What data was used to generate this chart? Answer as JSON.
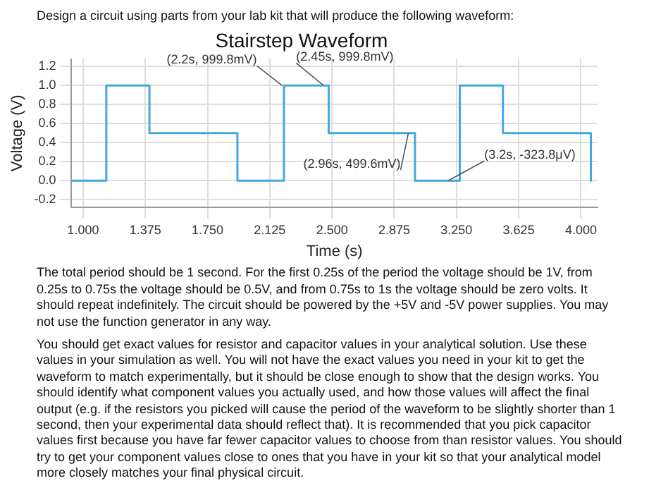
{
  "chart_data": {
    "type": "line",
    "title": "Stairstep Waveform",
    "xlabel": "Time (s)",
    "ylabel": "Voltage (V)",
    "xlim": [
      0.93,
      4.1
    ],
    "ylim": [
      -0.28,
      1.28
    ],
    "xticks": [
      {
        "value": 1,
        "label": "1.000"
      },
      {
        "value": 1.375,
        "label": "1.375"
      },
      {
        "value": 1.75,
        "label": "1.750"
      },
      {
        "value": 2.125,
        "label": "2.125"
      },
      {
        "value": 2.5,
        "label": "2.500"
      },
      {
        "value": 2.875,
        "label": "2.875"
      },
      {
        "value": 3.25,
        "label": "3.250"
      },
      {
        "value": 3.625,
        "label": "3.625"
      },
      {
        "value": 4,
        "label": "4.000"
      }
    ],
    "yticks": [
      {
        "value": -0.2,
        "label": "-0.2"
      },
      {
        "value": 0,
        "label": "0.0"
      },
      {
        "value": 0.2,
        "label": "0.2"
      },
      {
        "value": 0.4,
        "label": "0.4"
      },
      {
        "value": 0.6,
        "label": "0.6"
      },
      {
        "value": 0.8,
        "label": "0.8"
      },
      {
        "value": 1,
        "label": "1.0"
      },
      {
        "value": 1.2,
        "label": "1.2"
      }
    ],
    "grid": true,
    "legend": false,
    "marker": "none",
    "line_style": "solid",
    "series": [
      {
        "color": "#3fa9e0",
        "x": [
          0.93,
          1.14,
          1.14,
          1.4,
          1.4,
          1.93,
          1.93,
          2.21,
          2.21,
          2.48,
          2.48,
          3.0,
          3.0,
          3.27,
          3.27,
          3.53,
          3.53,
          4.06,
          4.06
        ],
        "values": [
          0,
          0,
          1,
          1,
          0.5,
          0.5,
          0,
          0,
          1,
          1,
          0.5,
          0.5,
          0,
          0,
          1,
          1,
          0.5,
          0.5,
          0
        ]
      }
    ],
    "annotations": [
      "Design a circuit using parts from your lab kit that will produce the following waveform:",
      {
        "text": "(2.2s, 999.8mV)",
        "x": 2.2,
        "y": 0.9998
      },
      {
        "text": "(2.45s, 999.8mV)",
        "x": 2.45,
        "y": 0.9998
      },
      {
        "text": "(2.96s, 499.6mV)",
        "x": 2.96,
        "y": 0.4996
      },
      {
        "text": "(3.2s, -323.8μV)",
        "x": 3.2,
        "y": -0.0003238
      },
      "The total period should be 1 second.  For the first 0.25s of the period the voltage should be 1V, from 0.25s to 0.75s the voltage should be 0.5V, and from 0.75s to 1s the voltage should be zero volts.  It should repeat indefinitely.  The circuit should be powered by the +5V and -5V power supplies.  You may not use the function generator in any way.",
      "You should get exact values for resistor and capacitor values in your analytical solution.  Use these values in your simulation as well.  You will not have the exact values you need in your kit to get the waveform to match experimentally, but it should be close enough to show that the design works.  You should identify what component values you actually used, and how those values will affect the final output (e.g. if the resistors you picked will cause the period of the waveform to be slightly shorter than 1 second, then your experimental data should reflect that).  It is recommended that you pick capacitor values first because you have far fewer capacitor values to choose from than resistor values.  You should try to get your component values close to ones that you have in your kit so that your analytical model more closely matches your final physical circuit."
    ]
  }
}
